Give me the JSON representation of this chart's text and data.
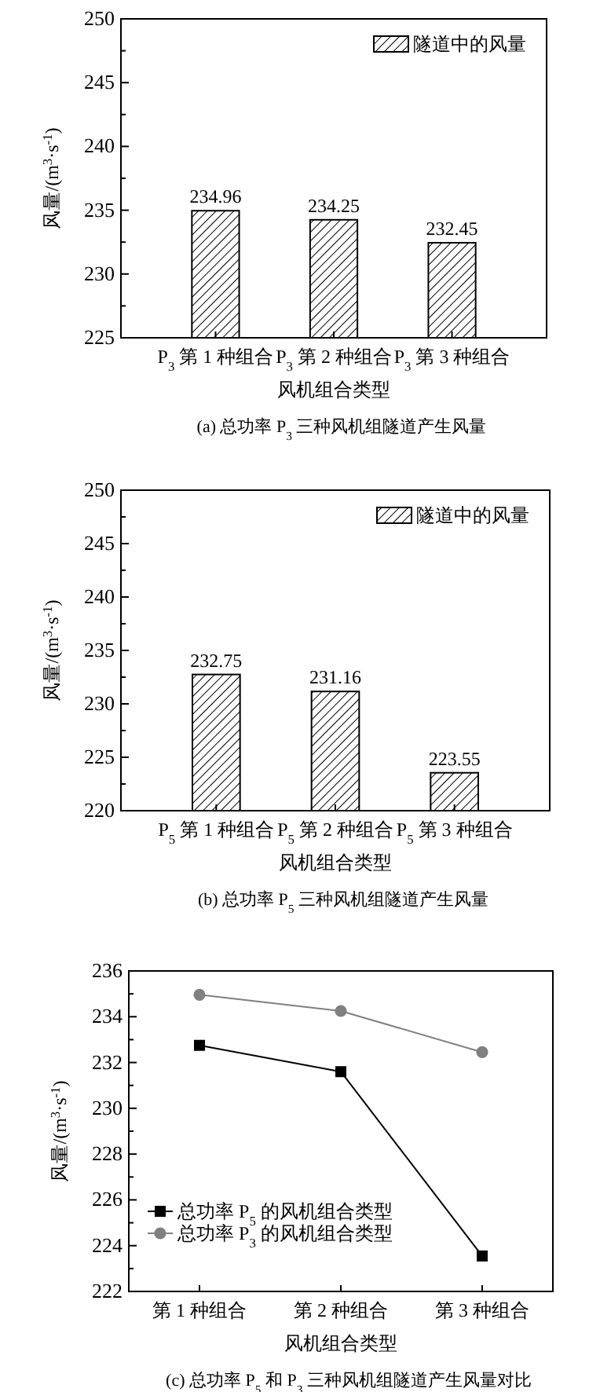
{
  "chart_data": [
    {
      "type": "bar",
      "title": "(a) 总功率 P$_{3}$ 三种风机组隧道产生风量",
      "xlabel": "风机组合类型",
      "ylabel": "风量/(m$^{3}$·s$^{-1}$)",
      "categories": [
        "P$_{3}$ 第 1 种组合",
        "P$_{3}$ 第 2 种组合",
        "P$_{3}$ 第 3 种组合"
      ],
      "series": [
        {
          "name": "隧道中的风量",
          "color": "#000000",
          "values": [
            234.96,
            234.25,
            232.45
          ]
        }
      ],
      "ylim": [
        225,
        250
      ],
      "yticks": [
        225,
        {
          "value": 227.5,
          "label": null
        },
        230,
        {
          "value": 232.5,
          "label": null
        },
        235,
        {
          "value": 237.5,
          "label": null
        },
        240,
        {
          "value": 242.5,
          "label": null
        },
        245,
        {
          "value": 247.5,
          "label": null
        },
        250
      ],
      "data_labels": true,
      "legend": "top right"
    },
    {
      "type": "bar",
      "title": "(b) 总功率 P$_{5}$ 三种风机组隧道产生风量",
      "xlabel": "风机组合类型",
      "ylabel": "风量/(m$^{3}$·s$^{-1}$)",
      "categories": [
        "P$_{5}$ 第 1 种组合",
        "P$_{5}$ 第 2 种组合",
        "P$_{5}$ 第 3 种组合"
      ],
      "series": [
        {
          "name": "隧道中的风量",
          "color": "#000000",
          "values": [
            232.75,
            231.16,
            223.55
          ]
        }
      ],
      "ylim": [
        220,
        250
      ],
      "yticks": [
        220,
        {
          "value": 222.5,
          "label": null
        },
        225,
        {
          "value": 227.5,
          "label": null
        },
        230,
        {
          "value": 232.5,
          "label": null
        },
        235,
        {
          "value": 237.5,
          "label": null
        },
        240,
        {
          "value": 242.5,
          "label": null
        },
        245,
        {
          "value": 247.5,
          "label": null
        },
        250
      ],
      "data_labels": true,
      "legend": "top right"
    },
    {
      "type": "line",
      "title": "(c) 总功率 P$_{5}$ 和 P$_{3}$ 三种风机组隧道产生风量对比",
      "xlabel": "风机组合类型",
      "ylabel": "风量/(m$^{3}$·s$^{-1}$)",
      "categories": [
        "第 1 种组合",
        "第 2 种组合",
        "第 3 种组合"
      ],
      "series": [
        {
          "name": "总功率 P$_{5}$ 的风机组合类型",
          "color": "#000000",
          "marker": "square",
          "values": [
            232.75,
            231.6,
            223.55
          ]
        },
        {
          "name": "总功率 P$_{3}$ 的风机组合类型",
          "color": "#808080",
          "marker": "circle",
          "values": [
            234.96,
            234.25,
            232.45
          ]
        }
      ],
      "ylim": [
        222,
        236
      ],
      "yticks": [
        222,
        {
          "value": 223,
          "label": null
        },
        224,
        {
          "value": 225,
          "label": null
        },
        226,
        {
          "value": 227,
          "label": null
        },
        228,
        {
          "value": 229,
          "label": null
        },
        230,
        {
          "value": 231,
          "label": null
        },
        232,
        {
          "value": 233,
          "label": null
        },
        234,
        {
          "value": 235,
          "label": null
        },
        236
      ],
      "legend": "left"
    }
  ]
}
